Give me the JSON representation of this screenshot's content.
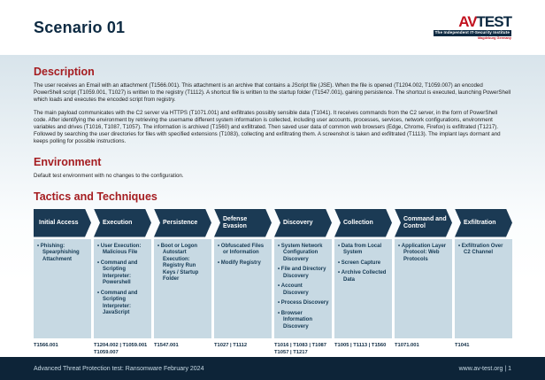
{
  "colors": {
    "navy": "#0d2a42",
    "chevron": "#1b3a54",
    "cellbg": "#c7d9e3",
    "celltext": "#153a54",
    "red": "#a51d21",
    "logored": "#c2121f",
    "footerbg": "#0d2438",
    "footertext": "#c9dbe6"
  },
  "header": {
    "title": "Scenario 01",
    "logo": {
      "av": "AV",
      "test": "TEST",
      "tagline": "The Independent IT-Security Institute",
      "location": "Magdeburg Germany"
    }
  },
  "description": {
    "heading": "Description",
    "paragraphs": [
      "The user receives an Email with an attachment (T1566.001). This attachment is an archive that contains a JScript file (JSE). When the file is opened (T1204.002, T1059.007) an encoded PowerShell script (T1059.001, T1027) is written to the registry (T1112). A shortcut file is written to the startup folder (T1547.001), gaining persistence. The shortcut is executed, launching PowerShell which loads and executes the encoded script from registry.",
      "The main payload communicates with the C2 server via HTTPS (T1071.001) and exfiltrates possibly sensible data (T1041). It receives commands from the C2 server, in the form of PowerShell code. After identifying the environment by retrieving the username different system information is collected, including user accounts, processes, services, network configurations, environment variables and drives (T1016, T1087, T1057). The information is archived (T1560) and exfiltrated. Then saved user data of common web browsers (Edge, Chrome, Firefox) is exfiltrated (T1217). Followed by searching the user directories for files with specified extensions (T1083), collecting and exfiltrating them. A screenshot is taken and exfiltrated (T1113). The implant lays dormant and keeps polling for possible instructions."
    ]
  },
  "environment": {
    "heading": "Environment",
    "text": "Default test environment with no changes to the configuration."
  },
  "tactics": {
    "heading": "Tactics and Techniques",
    "columns": [
      {
        "tactic": "Initial Access",
        "techniques": [
          "Phishing: Spearphishing Attachment"
        ],
        "codes": "T1566.001"
      },
      {
        "tactic": "Execution",
        "techniques": [
          "User Execution: Malicious File",
          "Command and Scripting Interpreter: Powershell",
          "Command and Scripting Interpreter: JavaScript"
        ],
        "codes": "T1204.002 | T1059.001\nT1059.007"
      },
      {
        "tactic": "Persistence",
        "techniques": [
          "Boot or Logon Autostart Execution: Registry Run Keys / Startup Folder"
        ],
        "codes": "T1547.001"
      },
      {
        "tactic": "Defense Evasion",
        "techniques": [
          "Obfuscated Files or Information",
          "Modify Registry"
        ],
        "codes": "T1027 | T1112"
      },
      {
        "tactic": "Discovery",
        "techniques": [
          "System Network Configuration Discovery",
          "File and Directory Discovery",
          "Account Discovery",
          "Process Discovery",
          "Browser Information Discovery"
        ],
        "codes": "T1016 | T1083 | T1087\nT1057 | T1217"
      },
      {
        "tactic": "Collection",
        "techniques": [
          "Data from Local System",
          "Screen Capture",
          "Archive Collected Data"
        ],
        "codes": "T1005 | T1113 | T1560"
      },
      {
        "tactic": "Command and Control",
        "techniques": [
          "Application Layer Protocol: Web Protocols"
        ],
        "codes": "T1071.001"
      },
      {
        "tactic": "Exfiltration",
        "techniques": [
          "Exfiltration Over C2 Channel"
        ],
        "codes": "T1041"
      }
    ]
  },
  "footer": {
    "left": "Advanced Threat Protection test: Ransomware February 2024",
    "right": "www.av-test.org | 1"
  }
}
